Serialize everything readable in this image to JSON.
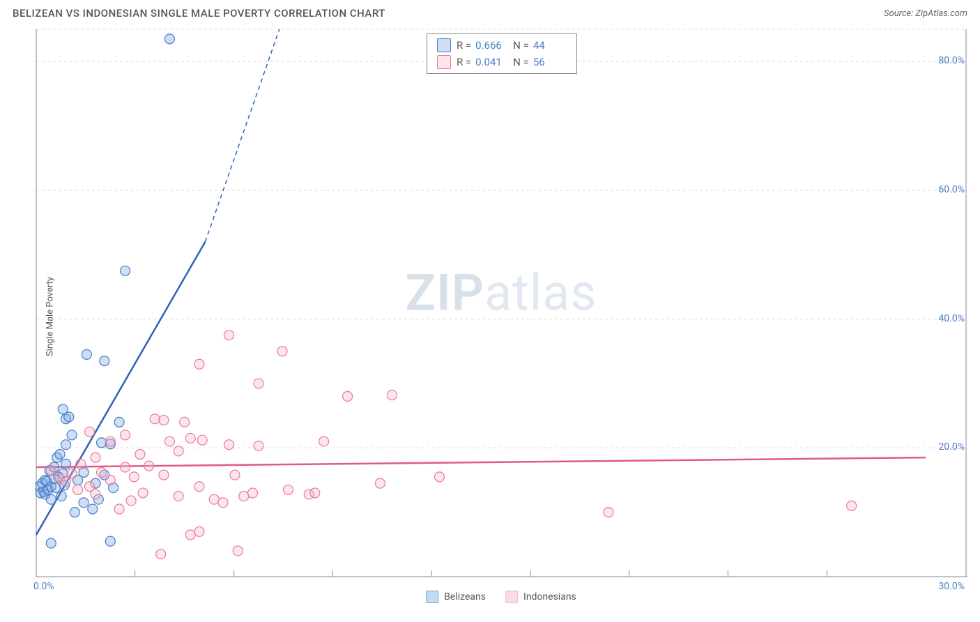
{
  "title": "BELIZEAN VS INDONESIAN SINGLE MALE POVERTY CORRELATION CHART",
  "source": "Source: ZipAtlas.com",
  "ylabel": "Single Male Poverty",
  "watermark_bold": "ZIP",
  "watermark_light": "atlas",
  "chart": {
    "type": "scatter",
    "xlim": [
      0,
      30
    ],
    "ylim": [
      0,
      85
    ],
    "xtick_labels": [
      "0.0%",
      "30.0%"
    ],
    "xtick_positions": [
      0,
      30
    ],
    "ytick_labels": [
      "20.0%",
      "40.0%",
      "60.0%",
      "80.0%"
    ],
    "ytick_positions": [
      20,
      40,
      60,
      80
    ],
    "xminor_ticks": [
      3.33,
      6.67,
      10,
      13.33,
      16.67,
      20,
      23.33,
      26.67
    ],
    "grid_color": "#d8d8d8",
    "axis_color": "#888",
    "background": "#ffffff",
    "marker_radius": 7,
    "marker_stroke_width": 1.2,
    "marker_fill_opacity": 0.35,
    "line_width": 2.5
  },
  "series": [
    {
      "name": "Belizeans",
      "color": "#6fa3e0",
      "stroke": "#4a7bc8",
      "line_color": "#2e62b8",
      "r_label": "R =",
      "r_value": "0.666",
      "n_label": "N =",
      "n_value": "44",
      "trend": {
        "x1": 0,
        "y1": 6.5,
        "x2": 5.7,
        "y2": 52,
        "dash_to_x": 8.2,
        "dash_to_y": 85
      },
      "points": [
        [
          0.1,
          14
        ],
        [
          0.15,
          13
        ],
        [
          0.2,
          14.5
        ],
        [
          0.25,
          13.2
        ],
        [
          0.3,
          15
        ],
        [
          0.3,
          12.8
        ],
        [
          0.35,
          14.8
        ],
        [
          0.4,
          13.5
        ],
        [
          0.45,
          16.5
        ],
        [
          0.5,
          14
        ],
        [
          0.5,
          12
        ],
        [
          0.6,
          17
        ],
        [
          0.6,
          15.2
        ],
        [
          0.65,
          13.8
        ],
        [
          0.7,
          18.5
        ],
        [
          0.75,
          15.5
        ],
        [
          0.8,
          19
        ],
        [
          0.85,
          12.5
        ],
        [
          0.9,
          16
        ],
        [
          0.95,
          14.2
        ],
        [
          1,
          17.5
        ],
        [
          0.5,
          5.2
        ],
        [
          2.5,
          5.5
        ],
        [
          1.0,
          24.5
        ],
        [
          1.1,
          24.8
        ],
        [
          0.9,
          26
        ],
        [
          1.3,
          10
        ],
        [
          1.6,
          11.5
        ],
        [
          1.9,
          10.5
        ],
        [
          2.1,
          12
        ],
        [
          1.0,
          20.5
        ],
        [
          2.2,
          20.8
        ],
        [
          2.5,
          20.6
        ],
        [
          1.4,
          15
        ],
        [
          1.6,
          16.2
        ],
        [
          2.0,
          14.5
        ],
        [
          2.3,
          15.8
        ],
        [
          2.6,
          13.8
        ],
        [
          1.7,
          34.5
        ],
        [
          2.3,
          33.5
        ],
        [
          3.0,
          47.5
        ],
        [
          4.5,
          83.5
        ],
        [
          2.8,
          24
        ],
        [
          1.2,
          22
        ]
      ]
    },
    {
      "name": "Indonesians",
      "color": "#f5b5c5",
      "stroke": "#e87a9a",
      "line_color": "#e05a85",
      "r_label": "R =",
      "r_value": "0.041",
      "n_label": "N =",
      "n_value": "56",
      "trend": {
        "x1": 0,
        "y1": 17,
        "x2": 30,
        "y2": 18.5
      },
      "points": [
        [
          0.5,
          16.5
        ],
        [
          0.8,
          15.2
        ],
        [
          1.0,
          14.8
        ],
        [
          1.2,
          16
        ],
        [
          1.4,
          13.5
        ],
        [
          1.5,
          17.5
        ],
        [
          1.8,
          14
        ],
        [
          2.0,
          12.8
        ],
        [
          2.2,
          16.2
        ],
        [
          2.5,
          15
        ],
        [
          2.8,
          10.5
        ],
        [
          3.0,
          17
        ],
        [
          3.2,
          11.8
        ],
        [
          3.3,
          15.5
        ],
        [
          3.5,
          19
        ],
        [
          2.5,
          21
        ],
        [
          3.0,
          22
        ],
        [
          1.8,
          22.5
        ],
        [
          4.0,
          24.5
        ],
        [
          4.3,
          24.3
        ],
        [
          5.0,
          24
        ],
        [
          4.3,
          15.8
        ],
        [
          4.5,
          21
        ],
        [
          5.2,
          21.5
        ],
        [
          5.6,
          21.2
        ],
        [
          5.5,
          14
        ],
        [
          6.0,
          12
        ],
        [
          6.3,
          11.5
        ],
        [
          5.2,
          6.5
        ],
        [
          5.5,
          7
        ],
        [
          4.2,
          3.5
        ],
        [
          6.8,
          4.0
        ],
        [
          5.5,
          33
        ],
        [
          4.8,
          19.5
        ],
        [
          6.5,
          20.5
        ],
        [
          7.5,
          20.3
        ],
        [
          6.7,
          15.8
        ],
        [
          7.0,
          12.5
        ],
        [
          7.3,
          13
        ],
        [
          8.5,
          13.5
        ],
        [
          9.2,
          12.8
        ],
        [
          9.4,
          13
        ],
        [
          7.5,
          30
        ],
        [
          8.3,
          35
        ],
        [
          6.5,
          37.5
        ],
        [
          9.7,
          21
        ],
        [
          10.5,
          28
        ],
        [
          12.0,
          28.2
        ],
        [
          11.6,
          14.5
        ],
        [
          13.6,
          15.5
        ],
        [
          19.3,
          10
        ],
        [
          27.5,
          11
        ],
        [
          3.8,
          17.2
        ],
        [
          4.8,
          12.5
        ],
        [
          3.6,
          13
        ],
        [
          2.0,
          18.5
        ]
      ]
    }
  ],
  "bottom_legend": [
    {
      "label": "Belizeans",
      "fill": "#c5daf2",
      "stroke": "#6fa3e0"
    },
    {
      "label": "Indonesians",
      "fill": "#fadce4",
      "stroke": "#f5b5c5"
    }
  ]
}
